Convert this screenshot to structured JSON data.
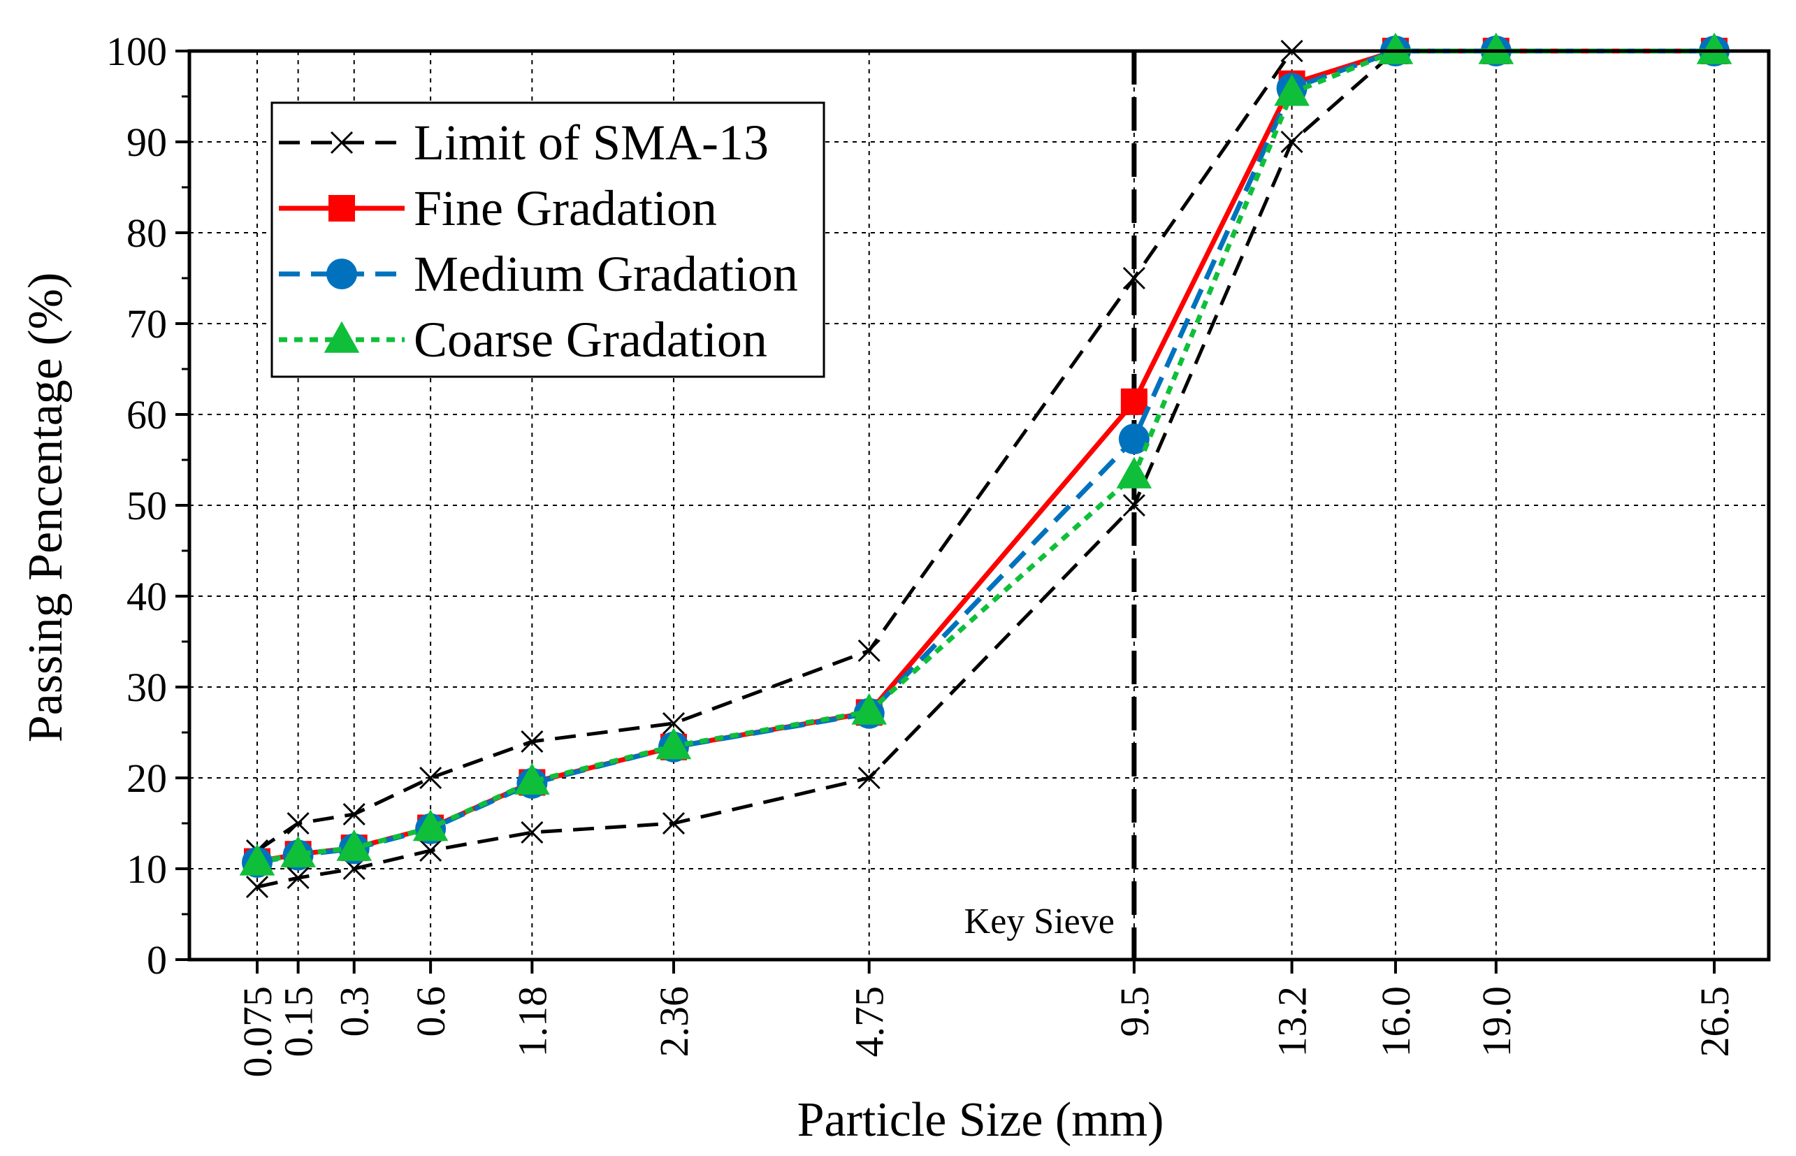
{
  "chart_data": {
    "type": "line",
    "xlabel": "Particle Size (mm)",
    "ylabel": "Passing Pencentage (%)",
    "x_axis_scale": "power-0.45 (gradation chart)",
    "x_ticks": [
      0.075,
      0.15,
      0.3,
      0.6,
      1.18,
      2.36,
      4.75,
      9.5,
      13.2,
      16.0,
      19.0,
      26.5
    ],
    "x_tick_labels": [
      "0.075",
      "0.15",
      "0.3",
      "0.6",
      "1.18",
      "2.36",
      "4.75",
      "9.5",
      "13.2",
      "16.0",
      "19.0",
      "26.5"
    ],
    "ylim": [
      0,
      100
    ],
    "y_ticks": [
      0,
      10,
      20,
      30,
      40,
      50,
      60,
      70,
      80,
      90,
      100
    ],
    "y_tick_labels": [
      "0",
      "10",
      "20",
      "30",
      "40",
      "50",
      "60",
      "70",
      "80",
      "90",
      "100"
    ],
    "grid": true,
    "legend_position": "top-left",
    "series": [
      {
        "name": "Limit of SMA-13",
        "role": "upper-limit",
        "color": "#000000",
        "marker": "x",
        "line_style": "dashed",
        "x": [
          0.075,
          0.15,
          0.3,
          0.6,
          1.18,
          2.36,
          4.75,
          9.5,
          13.2,
          16.0,
          19.0,
          26.5
        ],
        "values": [
          12,
          15,
          16,
          20,
          24,
          26,
          34,
          75,
          100,
          100,
          100,
          100
        ]
      },
      {
        "name": "",
        "role": "lower-limit",
        "color": "#000000",
        "marker": "x",
        "line_style": "dashed",
        "x": [
          0.075,
          0.15,
          0.3,
          0.6,
          1.18,
          2.36,
          4.75,
          9.5,
          13.2,
          16.0,
          19.0,
          26.5
        ],
        "values": [
          8,
          9,
          10,
          12,
          14,
          15,
          20,
          50,
          90,
          100,
          100,
          100
        ]
      },
      {
        "name": "Fine Gradation",
        "color": "#ff0000",
        "marker": "square",
        "line_style": "solid",
        "x": [
          0.075,
          0.15,
          0.3,
          0.6,
          1.18,
          2.36,
          4.75,
          9.5,
          13.2,
          16.0,
          19.0,
          26.5
        ],
        "values": [
          10.8,
          11.6,
          12.3,
          14.5,
          19.5,
          23.4,
          27.2,
          61.4,
          96.4,
          100,
          100,
          100
        ]
      },
      {
        "name": "Medium Gradation",
        "color": "#0072bd",
        "marker": "circle",
        "line_style": "dashed",
        "x": [
          0.075,
          0.15,
          0.3,
          0.6,
          1.18,
          2.36,
          4.75,
          9.5,
          13.2,
          16.0,
          19.0,
          26.5
        ],
        "values": [
          10.7,
          11.5,
          12.2,
          14.4,
          19.4,
          23.4,
          27.1,
          57.3,
          95.9,
          100,
          100,
          100
        ]
      },
      {
        "name": "Coarse Gradation",
        "color": "#0fbf3a",
        "marker": "triangle",
        "line_style": "dotted",
        "x": [
          0.075,
          0.15,
          0.3,
          0.6,
          1.18,
          2.36,
          4.75,
          9.5,
          13.2,
          16.0,
          19.0,
          26.5
        ],
        "values": [
          10.7,
          11.6,
          12.3,
          14.5,
          19.6,
          23.5,
          27.3,
          53.3,
          95.4,
          100,
          100,
          100
        ]
      }
    ],
    "annotations": [
      {
        "text": "Key Sieve",
        "x": 9.5,
        "type": "vertical-dashed-line"
      }
    ]
  }
}
